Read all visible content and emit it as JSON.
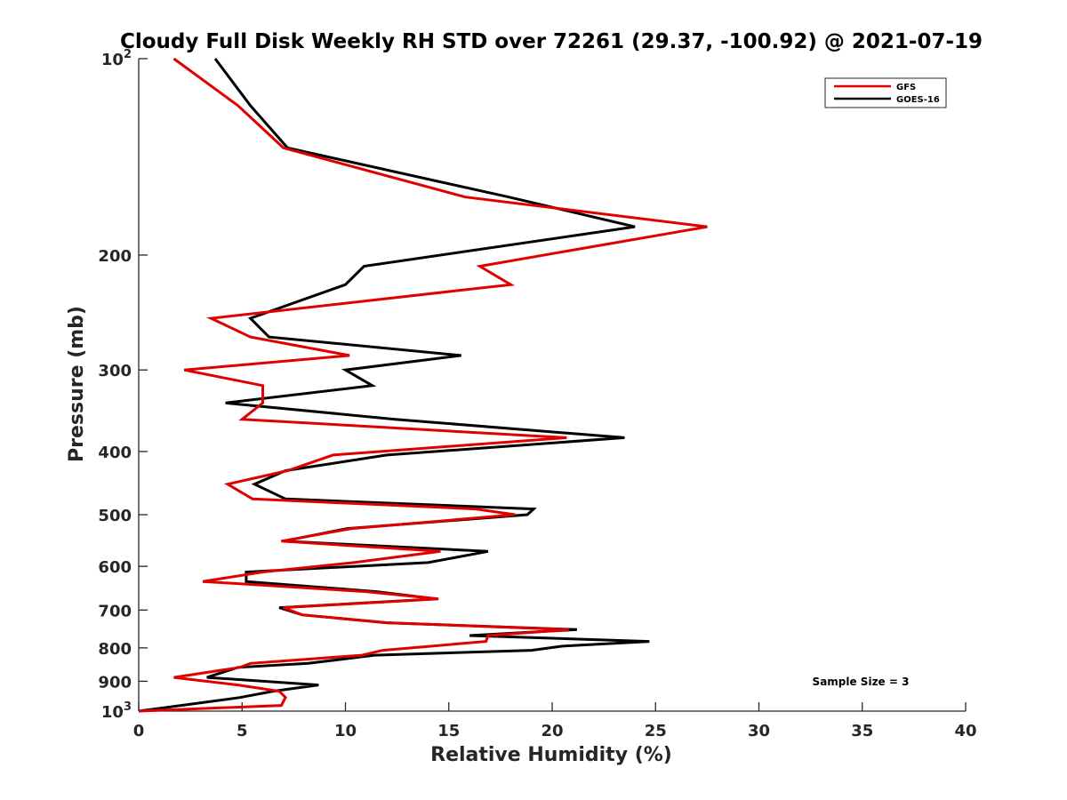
{
  "chart_data": {
    "type": "line",
    "title": "Cloudy Full Disk Weekly RH STD over 72261 (29.37, -100.92) @ 2021-07-19",
    "xlabel": "Relative Humidity (%)",
    "ylabel": "Pressure (mb)",
    "xlim": [
      0,
      40
    ],
    "ylim": [
      100,
      1000
    ],
    "y_scale": "log",
    "y_reversed": true,
    "x_ticks": [
      0,
      5,
      10,
      15,
      20,
      25,
      30,
      35,
      40
    ],
    "y_ticks": [
      {
        "value": 100,
        "base": "10",
        "exp": "2"
      },
      {
        "value": 200,
        "label": "200"
      },
      {
        "value": 300,
        "label": "300"
      },
      {
        "value": 400,
        "label": "400"
      },
      {
        "value": 500,
        "label": "500"
      },
      {
        "value": 600,
        "label": "600"
      },
      {
        "value": 700,
        "label": "700"
      },
      {
        "value": 800,
        "label": "800"
      },
      {
        "value": 900,
        "label": "900"
      },
      {
        "value": 1000,
        "base": "10",
        "exp": "3"
      }
    ],
    "grid": false,
    "legend_position": "top-right",
    "annotation": "Sample Size = 3",
    "series": [
      {
        "name": "GFS",
        "color": "#e00000",
        "points": [
          [
            1.7,
            100
          ],
          [
            4.8,
            118
          ],
          [
            7.0,
            137
          ],
          [
            15.8,
            163
          ],
          [
            27.5,
            181
          ],
          [
            16.5,
            208
          ],
          [
            18.0,
            222
          ],
          [
            3.5,
            250
          ],
          [
            5.4,
            267
          ],
          [
            10.2,
            285
          ],
          [
            2.2,
            300
          ],
          [
            6.0,
            317
          ],
          [
            6.0,
            337
          ],
          [
            5.0,
            357
          ],
          [
            20.7,
            381
          ],
          [
            9.4,
            405
          ],
          [
            7.2,
            428
          ],
          [
            4.3,
            449
          ],
          [
            5.5,
            473
          ],
          [
            16.3,
            490
          ],
          [
            18.2,
            500
          ],
          [
            10.3,
            525
          ],
          [
            6.9,
            549
          ],
          [
            14.6,
            569
          ],
          [
            10.4,
            592
          ],
          [
            6.0,
            612
          ],
          [
            3.1,
            633
          ],
          [
            11.0,
            656
          ],
          [
            14.5,
            673
          ],
          [
            7.0,
            694
          ],
          [
            7.9,
            712
          ],
          [
            12.0,
            732
          ],
          [
            20.8,
            750
          ],
          [
            16.9,
            766
          ],
          [
            16.8,
            782
          ],
          [
            11.8,
            807
          ],
          [
            10.8,
            821
          ],
          [
            5.4,
            845
          ],
          [
            4.9,
            857
          ],
          [
            1.7,
            888
          ],
          [
            4.8,
            912
          ],
          [
            6.8,
            932
          ],
          [
            7.1,
            953
          ],
          [
            6.9,
            980
          ],
          [
            0,
            1000
          ]
        ]
      },
      {
        "name": "GOES-16",
        "color": "#000000",
        "points": [
          [
            3.7,
            100
          ],
          [
            5.4,
            118
          ],
          [
            7.2,
            137
          ],
          [
            17.9,
            163
          ],
          [
            24.0,
            181
          ],
          [
            10.9,
            208
          ],
          [
            10.0,
            222
          ],
          [
            5.4,
            250
          ],
          [
            6.3,
            267
          ],
          [
            15.6,
            285
          ],
          [
            10.0,
            300
          ],
          [
            11.3,
            317
          ],
          [
            4.2,
            337
          ],
          [
            12.4,
            357
          ],
          [
            23.5,
            381
          ],
          [
            12.0,
            405
          ],
          [
            7.1,
            428
          ],
          [
            5.6,
            449
          ],
          [
            7.1,
            473
          ],
          [
            19.1,
            490
          ],
          [
            18.8,
            500
          ],
          [
            10.1,
            525
          ],
          [
            7.0,
            549
          ],
          [
            16.9,
            569
          ],
          [
            14.0,
            592
          ],
          [
            5.2,
            612
          ],
          [
            5.2,
            633
          ],
          [
            11.5,
            656
          ],
          [
            14.4,
            673
          ],
          [
            6.8,
            694
          ],
          [
            7.9,
            712
          ],
          [
            12.0,
            732
          ],
          [
            21.2,
            750
          ],
          [
            16.0,
            766
          ],
          [
            24.7,
            782
          ],
          [
            20.5,
            795
          ],
          [
            19.0,
            807
          ],
          [
            11.4,
            821
          ],
          [
            8.2,
            845
          ],
          [
            4.8,
            857
          ],
          [
            3.3,
            888
          ],
          [
            8.7,
            912
          ],
          [
            6.5,
            932
          ],
          [
            4.9,
            953
          ],
          [
            0,
            1000
          ]
        ]
      }
    ]
  }
}
